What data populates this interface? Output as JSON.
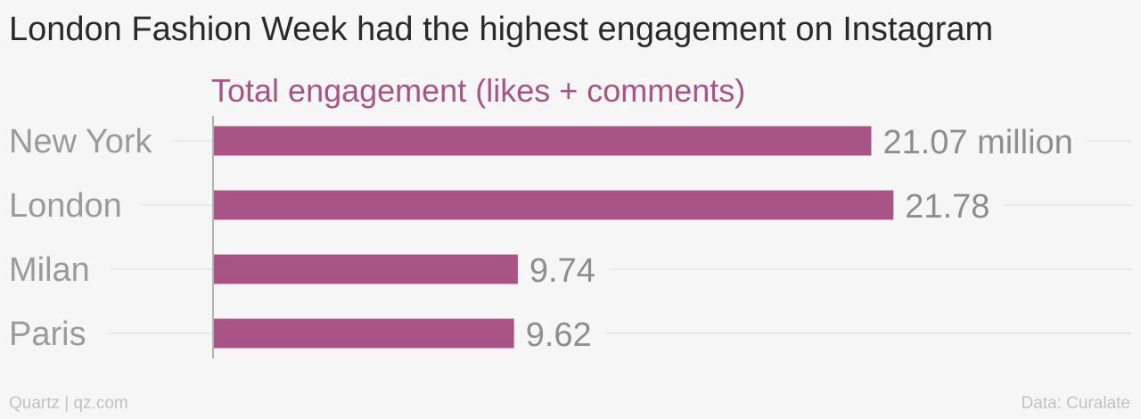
{
  "title": "London Fashion Week had the highest engagement on Instagram",
  "footer": {
    "source_left": "Quartz | qz.com",
    "source_right": "Data: Curalate"
  },
  "colors": {
    "bar": "#a85585",
    "series_label": "#a85585",
    "category_label": "#9b9b9b",
    "value_label": "#8e8e8e",
    "gridline": "#e6e6e6",
    "axis": "#9a9a9a"
  },
  "chart_data": {
    "type": "bar",
    "orientation": "horizontal",
    "series_label": "Total engagement (likes + comments)",
    "categories": [
      "New York",
      "London",
      "Milan",
      "Paris"
    ],
    "values": [
      21.07,
      21.78,
      9.74,
      9.62
    ],
    "value_labels": [
      "21.07 million",
      "21.78",
      "9.74",
      "9.62"
    ],
    "xlim": [
      0,
      23
    ]
  }
}
